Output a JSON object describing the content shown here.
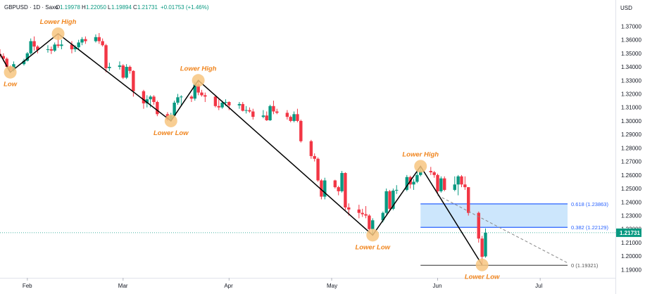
{
  "header": {
    "symbol": "GBPUSD · 1D · Saxo",
    "open_label": "O",
    "open": "1.19978",
    "high_label": "H",
    "high": "1.22050",
    "low_label": "L",
    "low": "1.19894",
    "close_label": "C",
    "close": "1.21731",
    "change": "+0.01753 (+1.46%)"
  },
  "currency": "USD",
  "colors": {
    "up": "#26a69a",
    "up_candle": "#089981",
    "down": "#f23645",
    "annotation": "#f0851e",
    "fib_line": "#2962ff",
    "fib_zone": "#bbdefb",
    "price_badge": "#089981",
    "zigzag": "#000000"
  },
  "chart_data": {
    "type": "candlestick",
    "y_range": [
      1.185,
      1.378
    ],
    "y_ticks": [
      "1.37000",
      "1.36000",
      "1.35000",
      "1.34000",
      "1.33000",
      "1.32000",
      "1.31000",
      "1.30000",
      "1.29000",
      "1.28000",
      "1.27000",
      "1.26000",
      "1.25000",
      "1.24000",
      "1.23000",
      "1.22000",
      "1.21000",
      "1.20000",
      "1.19000"
    ],
    "y_tick_values": [
      1.37,
      1.36,
      1.35,
      1.34,
      1.33,
      1.32,
      1.31,
      1.3,
      1.29,
      1.28,
      1.27,
      1.26,
      1.25,
      1.24,
      1.23,
      1.22,
      1.21,
      1.2,
      1.19
    ],
    "x_labels": [
      "Feb",
      "Mar",
      "Apr",
      "May",
      "Jun",
      "Jul"
    ],
    "x_label_dates": [
      "2022-02-01",
      "2022-03-01",
      "2022-04-01",
      "2022-05-01",
      "2022-06-01",
      "2022-07-01"
    ],
    "x_range": [
      "2022-01-24",
      "2022-07-23"
    ],
    "last_price": "1.21731",
    "last_price_value": 1.21731,
    "trend_points": [
      {
        "date": "2022-01-24",
        "price": 1.3495
      },
      {
        "date": "2022-01-27",
        "price": 1.336
      },
      {
        "date": "2022-02-10",
        "price": 1.3645
      },
      {
        "date": "2022-03-15",
        "price": 1.3
      },
      {
        "date": "2022-03-23",
        "price": 1.33
      },
      {
        "date": "2022-05-13",
        "price": 1.2155
      },
      {
        "date": "2022-05-27",
        "price": 1.2665
      },
      {
        "date": "2022-06-14",
        "price": 1.1935
      }
    ],
    "annotations": [
      {
        "label": "Low",
        "date": "2022-01-27",
        "price": 1.336,
        "pos": "below"
      },
      {
        "label": "Lower High",
        "date": "2022-02-10",
        "price": 1.3645,
        "pos": "above"
      },
      {
        "label": "Lower Low",
        "date": "2022-03-15",
        "price": 1.3,
        "pos": "below"
      },
      {
        "label": "Lower High",
        "date": "2022-03-23",
        "price": 1.33,
        "pos": "above"
      },
      {
        "label": "Lower Low",
        "date": "2022-05-13",
        "price": 1.2155,
        "pos": "below"
      },
      {
        "label": "Lower High",
        "date": "2022-05-27",
        "price": 1.2665,
        "pos": "above"
      },
      {
        "label": "Lower Low",
        "date": "2022-06-14",
        "price": 1.1935,
        "pos": "below"
      }
    ],
    "fibonacci": {
      "from_date": "2022-05-27",
      "to_date": "2022-07-09",
      "levels": [
        {
          "label": "0.618 (1.23863)",
          "value": 1.23863
        },
        {
          "label": "0.382 (1.22129)",
          "value": 1.22129
        },
        {
          "label": "0 (1.19321)",
          "value": 1.19321
        }
      ],
      "projection": {
        "from_date": "2022-06-01",
        "from_price": 1.245,
        "to_date": "2022-07-09",
        "to_price": 1.195
      }
    },
    "candles": [
      {
        "d": "2022-01-24",
        "o": 1.3495,
        "h": 1.353,
        "l": 1.3465,
        "c": 1.348
      },
      {
        "d": "2022-01-25",
        "o": 1.348,
        "h": 1.35,
        "l": 1.344,
        "c": 1.346
      },
      {
        "d": "2022-01-26",
        "o": 1.346,
        "h": 1.347,
        "l": 1.339,
        "c": 1.34
      },
      {
        "d": "2022-01-27",
        "o": 1.34,
        "h": 1.341,
        "l": 1.336,
        "c": 1.3375
      },
      {
        "d": "2022-01-28",
        "o": 1.3375,
        "h": 1.344,
        "l": 1.3365,
        "c": 1.342
      },
      {
        "d": "2022-01-31",
        "o": 1.342,
        "h": 1.346,
        "l": 1.341,
        "c": 1.3445
      },
      {
        "d": "2022-02-01",
        "o": 1.3445,
        "h": 1.351,
        "l": 1.344,
        "c": 1.35
      },
      {
        "d": "2022-02-02",
        "o": 1.35,
        "h": 1.361,
        "l": 1.349,
        "c": 1.359
      },
      {
        "d": "2022-02-03",
        "o": 1.359,
        "h": 1.3625,
        "l": 1.352,
        "c": 1.355
      },
      {
        "d": "2022-02-04",
        "o": 1.355,
        "h": 1.356,
        "l": 1.35,
        "c": 1.3525
      },
      {
        "d": "2022-02-07",
        "o": 1.3525,
        "h": 1.356,
        "l": 1.3505,
        "c": 1.353
      },
      {
        "d": "2022-02-08",
        "o": 1.353,
        "h": 1.355,
        "l": 1.3495,
        "c": 1.352
      },
      {
        "d": "2022-02-09",
        "o": 1.352,
        "h": 1.358,
        "l": 1.351,
        "c": 1.3565
      },
      {
        "d": "2022-02-10",
        "o": 1.3565,
        "h": 1.3645,
        "l": 1.354,
        "c": 1.3555
      },
      {
        "d": "2022-02-11",
        "o": 1.3555,
        "h": 1.36,
        "l": 1.353,
        "c": 1.3565
      },
      {
        "d": "2022-02-14",
        "o": 1.3565,
        "h": 1.359,
        "l": 1.35,
        "c": 1.353
      },
      {
        "d": "2022-02-15",
        "o": 1.353,
        "h": 1.356,
        "l": 1.351,
        "c": 1.3545
      },
      {
        "d": "2022-02-16",
        "o": 1.3545,
        "h": 1.36,
        "l": 1.353,
        "c": 1.358
      },
      {
        "d": "2022-02-17",
        "o": 1.358,
        "h": 1.362,
        "l": 1.356,
        "c": 1.3605
      },
      {
        "d": "2022-02-18",
        "o": 1.3605,
        "h": 1.3625,
        "l": 1.357,
        "c": 1.359
      },
      {
        "d": "2022-02-21",
        "o": 1.359,
        "h": 1.364,
        "l": 1.358,
        "c": 1.362
      },
      {
        "d": "2022-02-22",
        "o": 1.362,
        "h": 1.365,
        "l": 1.357,
        "c": 1.359
      },
      {
        "d": "2022-02-23",
        "o": 1.359,
        "h": 1.361,
        "l": 1.355,
        "c": 1.356
      },
      {
        "d": "2022-02-24",
        "o": 1.356,
        "h": 1.357,
        "l": 1.336,
        "c": 1.339
      },
      {
        "d": "2022-02-25",
        "o": 1.339,
        "h": 1.343,
        "l": 1.337,
        "c": 1.34
      },
      {
        "d": "2022-02-28",
        "o": 1.34,
        "h": 1.344,
        "l": 1.338,
        "c": 1.341
      },
      {
        "d": "2022-03-01",
        "o": 1.341,
        "h": 1.342,
        "l": 1.331,
        "c": 1.332
      },
      {
        "d": "2022-03-02",
        "o": 1.332,
        "h": 1.342,
        "l": 1.331,
        "c": 1.34
      },
      {
        "d": "2022-03-03",
        "o": 1.34,
        "h": 1.341,
        "l": 1.335,
        "c": 1.337
      },
      {
        "d": "2022-03-04",
        "o": 1.337,
        "h": 1.3375,
        "l": 1.318,
        "c": 1.322
      },
      {
        "d": "2022-03-07",
        "o": 1.322,
        "h": 1.323,
        "l": 1.309,
        "c": 1.313
      },
      {
        "d": "2022-03-08",
        "o": 1.313,
        "h": 1.319,
        "l": 1.31,
        "c": 1.316
      },
      {
        "d": "2022-03-09",
        "o": 1.316,
        "h": 1.319,
        "l": 1.31,
        "c": 1.318
      },
      {
        "d": "2022-03-10",
        "o": 1.318,
        "h": 1.319,
        "l": 1.312,
        "c": 1.314
      },
      {
        "d": "2022-03-11",
        "o": 1.314,
        "h": 1.315,
        "l": 1.3035,
        "c": 1.305
      },
      {
        "d": "2022-03-14",
        "o": 1.305,
        "h": 1.3065,
        "l": 1.3,
        "c": 1.301
      },
      {
        "d": "2022-03-15",
        "o": 1.301,
        "h": 1.306,
        "l": 1.2995,
        "c": 1.304
      },
      {
        "d": "2022-03-16",
        "o": 1.304,
        "h": 1.315,
        "l": 1.303,
        "c": 1.3135
      },
      {
        "d": "2022-03-17",
        "o": 1.3135,
        "h": 1.32,
        "l": 1.312,
        "c": 1.3175
      },
      {
        "d": "2022-03-18",
        "o": 1.3175,
        "h": 1.319,
        "l": 1.311,
        "c": 1.318
      },
      {
        "d": "2022-03-21",
        "o": 1.318,
        "h": 1.319,
        "l": 1.314,
        "c": 1.3165
      },
      {
        "d": "2022-03-22",
        "o": 1.3165,
        "h": 1.329,
        "l": 1.315,
        "c": 1.327
      },
      {
        "d": "2022-03-23",
        "o": 1.327,
        "h": 1.33,
        "l": 1.319,
        "c": 1.321
      },
      {
        "d": "2022-03-24",
        "o": 1.321,
        "h": 1.323,
        "l": 1.318,
        "c": 1.319
      },
      {
        "d": "2022-03-25",
        "o": 1.319,
        "h": 1.321,
        "l": 1.314,
        "c": 1.318
      },
      {
        "d": "2022-03-28",
        "o": 1.318,
        "h": 1.3185,
        "l": 1.31,
        "c": 1.311
      },
      {
        "d": "2022-03-29",
        "o": 1.311,
        "h": 1.316,
        "l": 1.308,
        "c": 1.31
      },
      {
        "d": "2022-03-30",
        "o": 1.31,
        "h": 1.315,
        "l": 1.309,
        "c": 1.3135
      },
      {
        "d": "2022-03-31",
        "o": 1.3135,
        "h": 1.316,
        "l": 1.311,
        "c": 1.314
      },
      {
        "d": "2022-04-01",
        "o": 1.314,
        "h": 1.3145,
        "l": 1.308,
        "c": 1.3115
      },
      {
        "d": "2022-04-04",
        "o": 1.3115,
        "h": 1.314,
        "l": 1.309,
        "c": 1.3125
      },
      {
        "d": "2022-04-05",
        "o": 1.3125,
        "h": 1.314,
        "l": 1.307,
        "c": 1.3075
      },
      {
        "d": "2022-04-06",
        "o": 1.3075,
        "h": 1.311,
        "l": 1.3055,
        "c": 1.308
      },
      {
        "d": "2022-04-07",
        "o": 1.308,
        "h": 1.31,
        "l": 1.306,
        "c": 1.307
      },
      {
        "d": "2022-04-08",
        "o": 1.307,
        "h": 1.309,
        "l": 1.301,
        "c": 1.303
      },
      {
        "d": "2022-04-11",
        "o": 1.303,
        "h": 1.308,
        "l": 1.302,
        "c": 1.304
      },
      {
        "d": "2022-04-12",
        "o": 1.304,
        "h": 1.307,
        "l": 1.3,
        "c": 1.3005
      },
      {
        "d": "2022-04-13",
        "o": 1.3005,
        "h": 1.312,
        "l": 1.3,
        "c": 1.311
      },
      {
        "d": "2022-04-14",
        "o": 1.311,
        "h": 1.315,
        "l": 1.305,
        "c": 1.307
      },
      {
        "d": "2022-04-15",
        "o": 1.307,
        "h": 1.309,
        "l": 1.305,
        "c": 1.306
      },
      {
        "d": "2022-04-18",
        "o": 1.306,
        "h": 1.308,
        "l": 1.301,
        "c": 1.303
      },
      {
        "d": "2022-04-19",
        "o": 1.303,
        "h": 1.304,
        "l": 1.299,
        "c": 1.3
      },
      {
        "d": "2022-04-20",
        "o": 1.3,
        "h": 1.307,
        "l": 1.299,
        "c": 1.305
      },
      {
        "d": "2022-04-21",
        "o": 1.305,
        "h": 1.309,
        "l": 1.299,
        "c": 1.3
      },
      {
        "d": "2022-04-22",
        "o": 1.3,
        "h": 1.301,
        "l": 1.284,
        "c": 1.285
      },
      {
        "d": "2022-04-25",
        "o": 1.285,
        "h": 1.286,
        "l": 1.272,
        "c": 1.274
      },
      {
        "d": "2022-04-26",
        "o": 1.274,
        "h": 1.276,
        "l": 1.27,
        "c": 1.272
      },
      {
        "d": "2022-04-27",
        "o": 1.272,
        "h": 1.273,
        "l": 1.255,
        "c": 1.256
      },
      {
        "d": "2022-04-28",
        "o": 1.256,
        "h": 1.257,
        "l": 1.242,
        "c": 1.244
      },
      {
        "d": "2022-04-29",
        "o": 1.244,
        "h": 1.258,
        "l": 1.242,
        "c": 1.256
      },
      {
        "d": "2022-05-02",
        "o": 1.256,
        "h": 1.2565,
        "l": 1.25,
        "c": 1.251
      },
      {
        "d": "2022-05-03",
        "o": 1.251,
        "h": 1.252,
        "l": 1.245,
        "c": 1.248
      },
      {
        "d": "2022-05-04",
        "o": 1.248,
        "h": 1.263,
        "l": 1.247,
        "c": 1.2615
      },
      {
        "d": "2022-05-05",
        "o": 1.2615,
        "h": 1.262,
        "l": 1.234,
        "c": 1.236
      },
      {
        "d": "2022-05-06",
        "o": 1.236,
        "h": 1.239,
        "l": 1.23,
        "c": 1.2345
      },
      {
        "d": "2022-05-09",
        "o": 1.2345,
        "h": 1.238,
        "l": 1.228,
        "c": 1.232
      },
      {
        "d": "2022-05-10",
        "o": 1.232,
        "h": 1.235,
        "l": 1.229,
        "c": 1.231
      },
      {
        "d": "2022-05-11",
        "o": 1.231,
        "h": 1.237,
        "l": 1.228,
        "c": 1.23
      },
      {
        "d": "2022-05-12",
        "o": 1.23,
        "h": 1.231,
        "l": 1.217,
        "c": 1.22
      },
      {
        "d": "2022-05-13",
        "o": 1.22,
        "h": 1.228,
        "l": 1.2155,
        "c": 1.2265
      },
      {
        "d": "2022-05-16",
        "o": 1.2265,
        "h": 1.233,
        "l": 1.225,
        "c": 1.232
      },
      {
        "d": "2022-05-17",
        "o": 1.232,
        "h": 1.25,
        "l": 1.231,
        "c": 1.248
      },
      {
        "d": "2022-05-18",
        "o": 1.248,
        "h": 1.249,
        "l": 1.234,
        "c": 1.235
      },
      {
        "d": "2022-05-19",
        "o": 1.235,
        "h": 1.25,
        "l": 1.234,
        "c": 1.2485
      },
      {
        "d": "2022-05-20",
        "o": 1.2485,
        "h": 1.2525,
        "l": 1.246,
        "c": 1.249
      },
      {
        "d": "2022-05-23",
        "o": 1.249,
        "h": 1.26,
        "l": 1.248,
        "c": 1.2585
      },
      {
        "d": "2022-05-24",
        "o": 1.2585,
        "h": 1.2595,
        "l": 1.25,
        "c": 1.253
      },
      {
        "d": "2022-05-25",
        "o": 1.253,
        "h": 1.257,
        "l": 1.249,
        "c": 1.255
      },
      {
        "d": "2022-05-26",
        "o": 1.255,
        "h": 1.263,
        "l": 1.254,
        "c": 1.26
      },
      {
        "d": "2022-05-27",
        "o": 1.26,
        "h": 1.2665,
        "l": 1.259,
        "c": 1.263
      },
      {
        "d": "2022-05-30",
        "o": 1.263,
        "h": 1.266,
        "l": 1.26,
        "c": 1.262
      },
      {
        "d": "2022-05-31",
        "o": 1.262,
        "h": 1.263,
        "l": 1.258,
        "c": 1.26
      },
      {
        "d": "2022-06-01",
        "o": 1.26,
        "h": 1.261,
        "l": 1.246,
        "c": 1.248
      },
      {
        "d": "2022-06-02",
        "o": 1.248,
        "h": 1.259,
        "l": 1.247,
        "c": 1.2575
      },
      {
        "d": "2022-06-03",
        "o": 1.2575,
        "h": 1.259,
        "l": 1.248,
        "c": 1.249
      },
      {
        "d": "2022-06-06",
        "o": 1.249,
        "h": 1.259,
        "l": 1.248,
        "c": 1.253
      },
      {
        "d": "2022-06-07",
        "o": 1.253,
        "h": 1.26,
        "l": 1.245,
        "c": 1.259
      },
      {
        "d": "2022-06-08",
        "o": 1.259,
        "h": 1.26,
        "l": 1.251,
        "c": 1.253
      },
      {
        "d": "2022-06-09",
        "o": 1.253,
        "h": 1.259,
        "l": 1.249,
        "c": 1.251
      },
      {
        "d": "2022-06-10",
        "o": 1.251,
        "h": 1.251,
        "l": 1.23,
        "c": 1.232
      },
      {
        "d": "2022-06-13",
        "o": 1.232,
        "h": 1.233,
        "l": 1.21,
        "c": 1.213
      },
      {
        "d": "2022-06-14",
        "o": 1.213,
        "h": 1.215,
        "l": 1.1935,
        "c": 1.1995
      },
      {
        "d": "2022-06-15",
        "o": 1.1998,
        "h": 1.2205,
        "l": 1.1989,
        "c": 1.2173
      }
    ]
  }
}
